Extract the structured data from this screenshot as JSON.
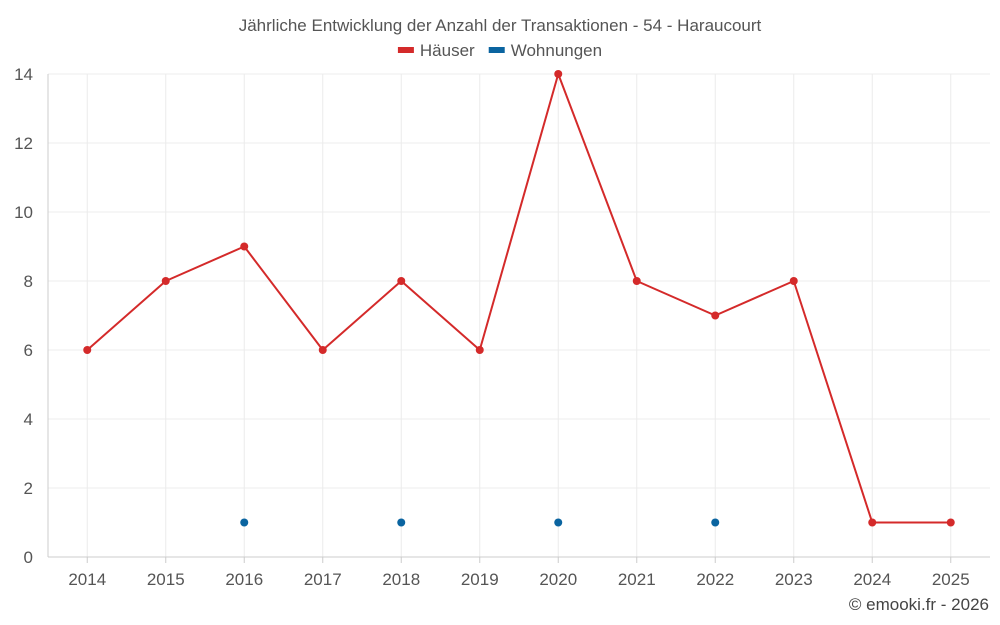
{
  "chart_data": {
    "type": "line",
    "title": "Jährliche Entwicklung der Anzahl der Transaktionen - 54 - Haraucourt",
    "xlabel": "",
    "ylabel": "",
    "categories": [
      "2014",
      "2015",
      "2016",
      "2017",
      "2018",
      "2019",
      "2020",
      "2021",
      "2022",
      "2023",
      "2024",
      "2025"
    ],
    "ylim": [
      0,
      14
    ],
    "yticks": [
      0,
      2,
      4,
      6,
      8,
      10,
      12,
      14
    ],
    "grid": true,
    "legend_position": "top-center",
    "series": [
      {
        "name": "Häuser",
        "color": "#d42a2a",
        "line": true,
        "values": [
          6,
          8,
          9,
          6,
          8,
          6,
          14,
          8,
          7,
          8,
          1,
          1
        ]
      },
      {
        "name": "Wohnungen",
        "color": "#0a64a0",
        "line": false,
        "values": [
          null,
          null,
          1,
          null,
          1,
          null,
          1,
          null,
          1,
          null,
          null,
          null
        ]
      }
    ]
  },
  "credit": "© emooki.fr - 2026"
}
